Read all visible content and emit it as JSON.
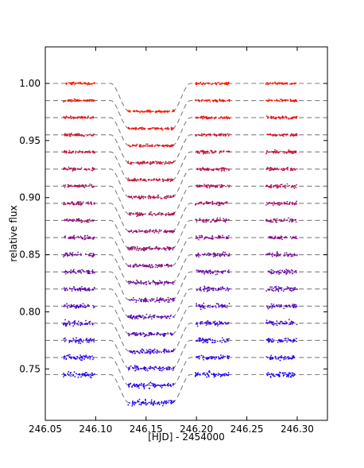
{
  "chart_data": {
    "type": "scatter",
    "title": "",
    "xlabel": "[HJD] - 2454000",
    "ylabel": "relative flux",
    "xlim": [
      246.05,
      246.33
    ],
    "ylim": [
      0.705,
      1.032
    ],
    "xticks": [
      246.05,
      246.1,
      246.15,
      246.2,
      246.25,
      246.3
    ],
    "xtick_labels": [
      "246.05",
      "246.10",
      "246.15",
      "246.20",
      "246.25",
      "246.30"
    ],
    "yticks": [
      0.75,
      0.8,
      0.85,
      0.9,
      0.95,
      1.0
    ],
    "ytick_labels": [
      "0.75",
      "0.80",
      "0.85",
      "0.90",
      "0.95",
      "1.00"
    ],
    "grid": false,
    "legend": "none",
    "model_curve": {
      "style": "dashed",
      "color": "#7f7f7f",
      "transit_depth": 0.0245,
      "ingress_start": 246.115,
      "ingress_end": 246.133,
      "egress_start": 246.176,
      "egress_end": 246.194
    },
    "observation_windows": [
      [
        246.068,
        246.099
      ],
      [
        246.132,
        246.178
      ],
      [
        246.199,
        246.233
      ],
      [
        246.269,
        246.3
      ]
    ],
    "series_baselines": [
      1.0,
      0.985,
      0.97,
      0.955,
      0.94,
      0.925,
      0.91,
      0.895,
      0.88,
      0.865,
      0.85,
      0.835,
      0.82,
      0.805,
      0.79,
      0.775,
      0.76,
      0.745
    ],
    "color_top": "#ff1a00",
    "color_bottom": "#1a00ff"
  }
}
